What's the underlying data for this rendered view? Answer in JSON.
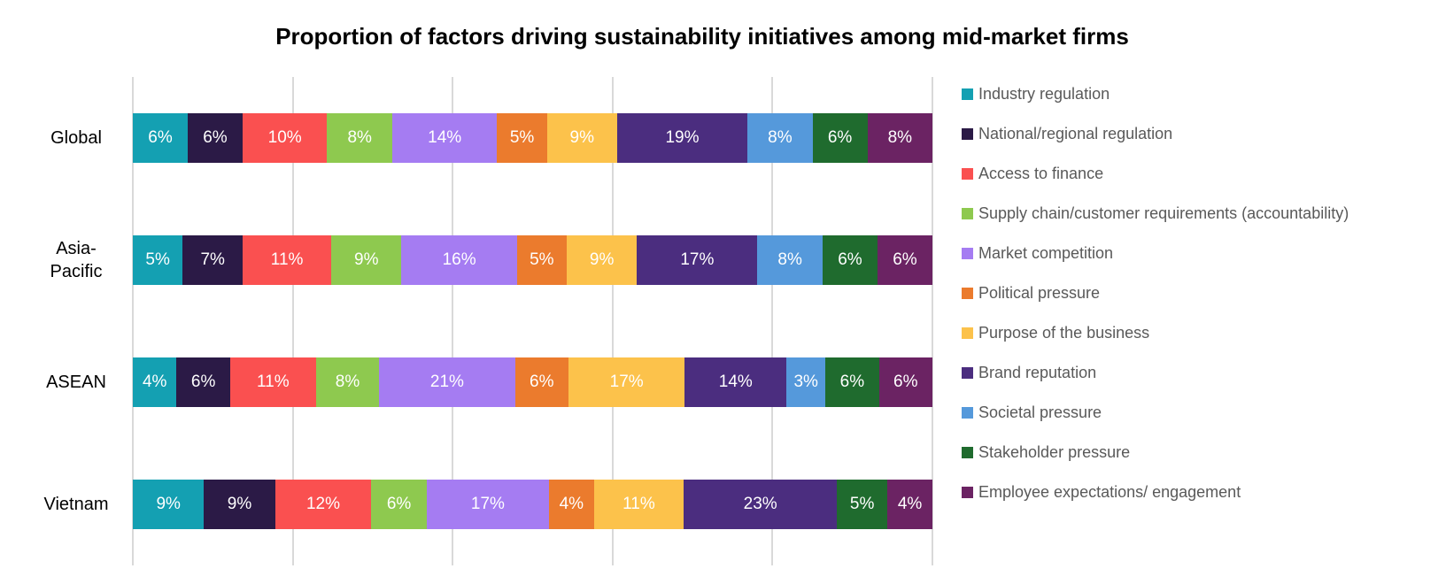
{
  "title": "Proportion of factors driving sustainability initiatives among mid-market firms",
  "chart_data": {
    "type": "bar",
    "subtype": "horizontal-100pct-stacked",
    "title": "Proportion of factors driving sustainability initiatives among mid-market firms",
    "categories": [
      "Global",
      "Asia-Pacific",
      "ASEAN",
      "Vietnam"
    ],
    "series": [
      {
        "name": "Industry regulation",
        "color": "#14A0B2",
        "values": [
          6,
          5,
          4,
          9
        ]
      },
      {
        "name": "National/regional regulation",
        "color": "#2B1A46",
        "values": [
          6,
          7,
          6,
          9
        ]
      },
      {
        "name": "Access to finance",
        "color": "#FA5050",
        "values": [
          10,
          11,
          11,
          12
        ]
      },
      {
        "name": "Supply chain/customer requirements (accountability)",
        "color": "#8EC94F",
        "values": [
          8,
          9,
          8,
          6
        ]
      },
      {
        "name": "Market competition",
        "color": "#A57CF2",
        "values": [
          14,
          16,
          21,
          17
        ]
      },
      {
        "name": "Political pressure",
        "color": "#EB7B2D",
        "values": [
          5,
          5,
          6,
          4
        ]
      },
      {
        "name": "Purpose of the business",
        "color": "#FCC24B",
        "values": [
          9,
          9,
          17,
          11
        ]
      },
      {
        "name": "Brand reputation",
        "color": "#4B2D7F",
        "values": [
          19,
          17,
          14,
          23
        ]
      },
      {
        "name": "Societal pressure",
        "color": "#5599DB",
        "values": [
          8,
          8,
          3,
          0
        ]
      },
      {
        "name": "Stakeholder pressure",
        "color": "#1F6B2E",
        "values": [
          6,
          6,
          6,
          5
        ]
      },
      {
        "name": "Employee expectations/ engagement",
        "color": "#6B2363",
        "values": [
          8,
          6,
          6,
          4
        ]
      }
    ],
    "value_suffix": "%",
    "data_label_color": "#FFFFFF",
    "xlim": [
      0,
      100
    ],
    "gridlines_percent": [
      0,
      20,
      40,
      60,
      80,
      100
    ],
    "grid_color": "#D9D9D9",
    "grid": "vertical only, no axis tick labels",
    "legend_position": "right",
    "legend_text_color": "#595959"
  }
}
